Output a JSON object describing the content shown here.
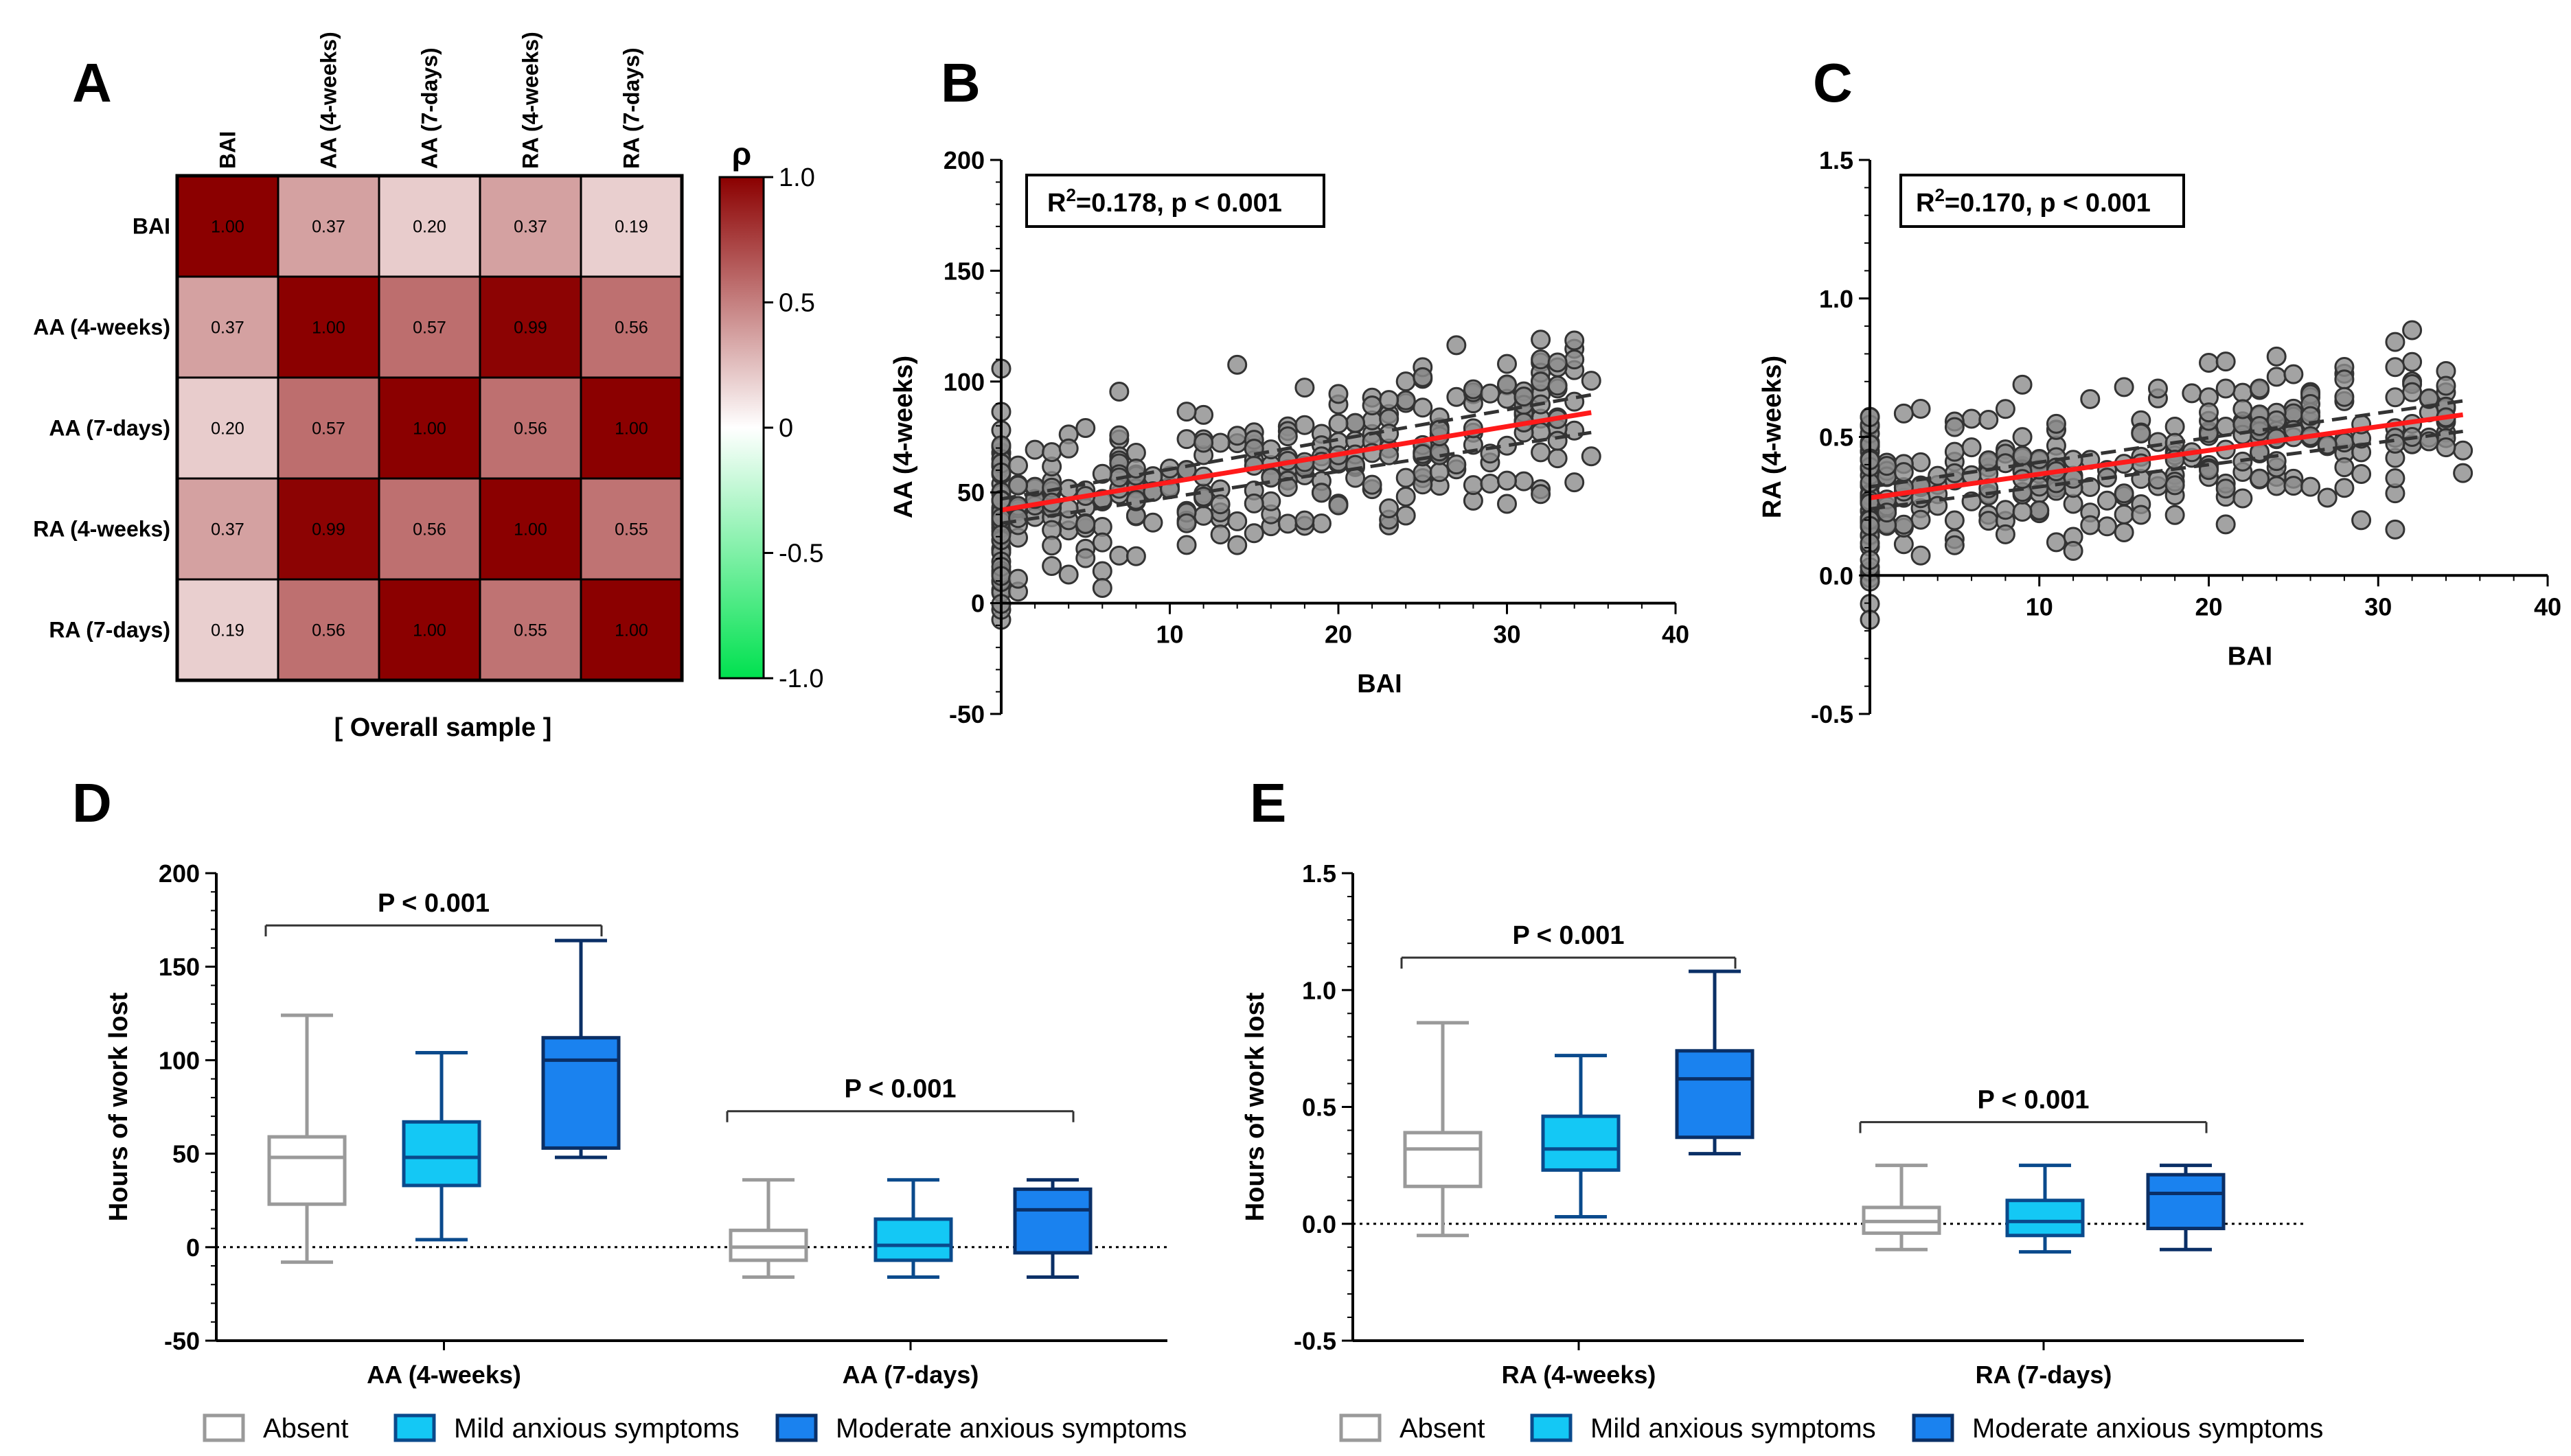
{
  "panels": {
    "A": "A",
    "B": "B",
    "C": "C",
    "D": "D",
    "E": "E"
  },
  "chart_data": [
    {
      "id": "A",
      "type": "heatmap",
      "labels": [
        "BAI",
        "AA (4-weeks)",
        "AA (7-days)",
        "RA (4-weeks)",
        "RA (7-days)"
      ],
      "matrix": [
        [
          "1.00",
          "0.37",
          "0.20",
          "0.37",
          "0.19"
        ],
        [
          "0.37",
          "1.00",
          "0.57",
          "0.99",
          "0.56"
        ],
        [
          "0.20",
          "0.57",
          "1.00",
          "0.56",
          "1.00"
        ],
        [
          "0.37",
          "0.99",
          "0.56",
          "1.00",
          "0.55"
        ],
        [
          "0.19",
          "0.56",
          "1.00",
          "0.55",
          "1.00"
        ]
      ],
      "colorbar_title": "ρ",
      "colorbar_ticks": [
        "1.0",
        "0.5",
        "0",
        "-0.5",
        "-1.0"
      ],
      "colorbar_range": [
        -1.0,
        1.0
      ],
      "caption": "[ Overall sample ]",
      "colors": {
        "high": "#8b0000",
        "mid": "#ffffff",
        "low": "#00e14f"
      }
    },
    {
      "id": "B",
      "type": "scatter",
      "xlabel": "BAI",
      "ylabel": "AA (4-weeks)",
      "xlim": [
        0,
        40
      ],
      "ylim": [
        -50,
        200
      ],
      "xticks": [
        "10",
        "20",
        "30",
        "40"
      ],
      "yticks": [
        "-50",
        "0",
        "50",
        "100",
        "150",
        "200"
      ],
      "annotation_main": "R",
      "annotation_sup": "2",
      "annotation_rest": "=0.178, p < 0.001",
      "fit": {
        "x0": 0,
        "y0": 42,
        "x1": 35,
        "y1": 86
      },
      "ci_upper": {
        "x0": 0,
        "y0": 47,
        "x1": 35,
        "y1": 94
      },
      "ci_lower": {
        "x0": 0,
        "y0": 36,
        "x1": 35,
        "y1": 77
      }
    },
    {
      "id": "C",
      "type": "scatter",
      "xlabel": "BAI",
      "ylabel": "RA (4-weeks)",
      "xlim": [
        0,
        40
      ],
      "ylim": [
        -0.5,
        1.5
      ],
      "xticks": [
        "10",
        "20",
        "30",
        "40"
      ],
      "yticks": [
        "-0.5",
        "0.0",
        "0.5",
        "1.0",
        "1.5"
      ],
      "annotation_main": "R",
      "annotation_sup": "2",
      "annotation_rest": "=0.170, p < 0.001",
      "fit": {
        "x0": 0,
        "y0": 0.28,
        "x1": 35,
        "y1": 0.58
      },
      "ci_upper": {
        "x0": 0,
        "y0": 0.32,
        "x1": 35,
        "y1": 0.63
      },
      "ci_lower": {
        "x0": 0,
        "y0": 0.24,
        "x1": 35,
        "y1": 0.52
      }
    },
    {
      "id": "D",
      "type": "box",
      "ylabel": "Hours of work lost",
      "ylim": [
        -50,
        200
      ],
      "yticks": [
        "-50",
        "0",
        "50",
        "100",
        "150",
        "200"
      ],
      "groups": [
        "AA (4-weeks)",
        "AA (7-days)"
      ],
      "pvalues": [
        "P < 0.001",
        "P < 0.001"
      ],
      "series": [
        {
          "name": "Absent",
          "color": "#ffffff",
          "stroke": "#9a9a9a",
          "boxes": [
            {
              "min": -8,
              "q1": 23,
              "median": 48,
              "q3": 59,
              "max": 124
            },
            {
              "min": -16,
              "q1": -7,
              "median": 0,
              "q3": 9,
              "max": 36
            }
          ]
        },
        {
          "name": "Mild anxious symptoms",
          "color": "#14c8f5",
          "stroke": "#0a4a8c",
          "boxes": [
            {
              "min": 4,
              "q1": 33,
              "median": 48,
              "q3": 67,
              "max": 104
            },
            {
              "min": -16,
              "q1": -7,
              "median": 1,
              "q3": 15,
              "max": 36
            }
          ]
        },
        {
          "name": "Moderate anxious symptoms",
          "color": "#1a82ef",
          "stroke": "#0a2f66",
          "boxes": [
            {
              "min": 48,
              "q1": 53,
              "median": 100,
              "q3": 112,
              "max": 164
            },
            {
              "min": -16,
              "q1": -3,
              "median": 20,
              "q3": 31,
              "max": 36
            }
          ]
        }
      ]
    },
    {
      "id": "E",
      "type": "box",
      "ylabel": "Hours of work lost",
      "ylim": [
        -0.5,
        1.5
      ],
      "yticks": [
        "-0.5",
        "0.0",
        "0.5",
        "1.0",
        "1.5"
      ],
      "groups": [
        "RA (4-weeks)",
        "RA (7-days)"
      ],
      "pvalues": [
        "P < 0.001",
        "P < 0.001"
      ],
      "series": [
        {
          "name": "Absent",
          "color": "#ffffff",
          "stroke": "#9a9a9a",
          "boxes": [
            {
              "min": -0.05,
              "q1": 0.16,
              "median": 0.32,
              "q3": 0.39,
              "max": 0.86
            },
            {
              "min": -0.11,
              "q1": -0.04,
              "median": 0.01,
              "q3": 0.07,
              "max": 0.25
            }
          ]
        },
        {
          "name": "Mild anxious symptoms",
          "color": "#14c8f5",
          "stroke": "#0a4a8c",
          "boxes": [
            {
              "min": 0.03,
              "q1": 0.23,
              "median": 0.32,
              "q3": 0.46,
              "max": 0.72
            },
            {
              "min": -0.12,
              "q1": -0.05,
              "median": 0.01,
              "q3": 0.1,
              "max": 0.25
            }
          ]
        },
        {
          "name": "Moderate anxious symptoms",
          "color": "#1a82ef",
          "stroke": "#0a2f66",
          "boxes": [
            {
              "min": 0.3,
              "q1": 0.37,
              "median": 0.62,
              "q3": 0.74,
              "max": 1.08
            },
            {
              "min": -0.11,
              "q1": -0.02,
              "median": 0.13,
              "q3": 0.21,
              "max": 0.25
            }
          ]
        }
      ]
    }
  ]
}
